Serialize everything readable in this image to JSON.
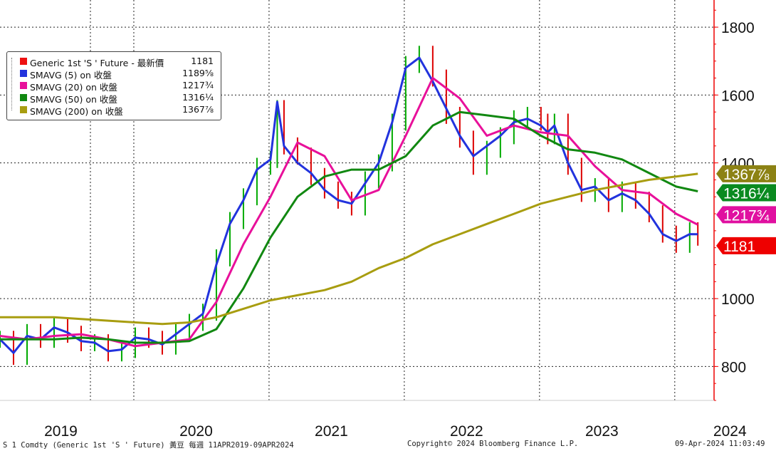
{
  "chart_data": {
    "type": "line",
    "title": "",
    "xlabel": "",
    "ylabel": "",
    "ylim": [
      700,
      1880
    ],
    "xlim": [
      2019.0,
      2024.28
    ],
    "grid": true,
    "legend_placement": "top-left",
    "y_ticks": [
      "800",
      "1000",
      "1400",
      "1600",
      "1800"
    ],
    "x_ticks": [
      "2019",
      "2020",
      "2021",
      "2022",
      "2023",
      "2024"
    ],
    "colors": {
      "price_up": "#00aa00",
      "price_down": "#dd0000",
      "sma5": "#2233dd",
      "sma20": "#e8109a",
      "sma50": "#118811",
      "sma200": "#a89d10",
      "axis": "#ee0000",
      "grid": "#222222"
    },
    "legend": [
      {
        "name": "Generic 1st 'S ' Future - 最新價",
        "value": "1181",
        "color": "#ee1111"
      },
      {
        "name": "SMAVG (5)  on 收盤",
        "value": "1189⅝",
        "color": "#2233dd"
      },
      {
        "name": "SMAVG (20) on 收盤",
        "value": "1217¾",
        "color": "#e8109a"
      },
      {
        "name": "SMAVG (50) on 收盤",
        "value": "1316¼",
        "color": "#118811"
      },
      {
        "name": "SMAVG (200) on 收盤",
        "value": "1367⅞",
        "color": "#a89d10"
      }
    ],
    "price_tags": [
      {
        "label": "1367⅞",
        "color": "#8c8214"
      },
      {
        "label": "1316¼",
        "color": "#0a8a20"
      },
      {
        "label": "1217¾",
        "color": "#e010a0"
      },
      {
        "label": "1181",
        "color": "#ee0000"
      }
    ],
    "series": [
      {
        "name": "Generic 1st 'S ' Future - 最新價",
        "x": [
          2019.0,
          2019.1,
          2019.2,
          2019.3,
          2019.4,
          2019.5,
          2019.6,
          2019.7,
          2019.8,
          2019.9,
          2020.0,
          2020.1,
          2020.2,
          2020.3,
          2020.4,
          2020.5,
          2020.6,
          2020.7,
          2020.8,
          2020.9,
          2021.0,
          2021.05,
          2021.1,
          2021.2,
          2021.3,
          2021.4,
          2021.5,
          2021.6,
          2021.7,
          2021.8,
          2021.9,
          2022.0,
          2022.1,
          2022.2,
          2022.3,
          2022.4,
          2022.5,
          2022.6,
          2022.7,
          2022.8,
          2022.9,
          2023.0,
          2023.05,
          2023.1,
          2023.2,
          2023.3,
          2023.4,
          2023.5,
          2023.6,
          2023.7,
          2023.8,
          2023.9,
          2024.0,
          2024.1,
          2024.16
        ],
        "values": [
          880,
          830,
          900,
          880,
          920,
          895,
          870,
          870,
          840,
          850,
          890,
          880,
          860,
          900,
          930,
          960,
          1120,
          1230,
          1300,
          1390,
          1410,
          1560,
          1450,
          1420,
          1360,
          1320,
          1290,
          1270,
          1350,
          1400,
          1520,
          1690,
          1720,
          1650,
          1540,
          1470,
          1390,
          1440,
          1480,
          1530,
          1540,
          1520,
          1480,
          1520,
          1390,
          1310,
          1330,
          1280,
          1320,
          1290,
          1250,
          1190,
          1160,
          1200,
          1181
        ]
      },
      {
        "name": "SMAVG (5) on 收盤",
        "x": [
          2019.0,
          2019.1,
          2019.2,
          2019.3,
          2019.4,
          2019.5,
          2019.6,
          2019.7,
          2019.8,
          2019.9,
          2020.0,
          2020.1,
          2020.2,
          2020.3,
          2020.4,
          2020.5,
          2020.6,
          2020.7,
          2020.8,
          2020.9,
          2021.0,
          2021.05,
          2021.1,
          2021.2,
          2021.3,
          2021.4,
          2021.5,
          2021.6,
          2021.7,
          2021.8,
          2021.9,
          2022.0,
          2022.1,
          2022.2,
          2022.3,
          2022.4,
          2022.5,
          2022.6,
          2022.7,
          2022.8,
          2022.9,
          2023.0,
          2023.05,
          2023.1,
          2023.2,
          2023.3,
          2023.4,
          2023.5,
          2023.6,
          2023.7,
          2023.8,
          2023.9,
          2024.0,
          2024.1,
          2024.16
        ],
        "values": [
          880,
          840,
          890,
          880,
          915,
          900,
          875,
          870,
          845,
          850,
          885,
          880,
          865,
          895,
          925,
          955,
          1100,
          1220,
          1290,
          1380,
          1410,
          1580,
          1450,
          1400,
          1370,
          1320,
          1290,
          1280,
          1340,
          1400,
          1520,
          1680,
          1710,
          1640,
          1560,
          1480,
          1420,
          1450,
          1480,
          1520,
          1530,
          1510,
          1490,
          1510,
          1400,
          1320,
          1330,
          1290,
          1310,
          1290,
          1250,
          1190,
          1170,
          1190,
          1189.6
        ]
      },
      {
        "name": "SMAVG (20) on 收盤",
        "x": [
          2019.0,
          2019.2,
          2019.4,
          2019.6,
          2019.8,
          2020.0,
          2020.2,
          2020.4,
          2020.6,
          2020.8,
          2021.0,
          2021.2,
          2021.4,
          2021.6,
          2021.8,
          2022.0,
          2022.2,
          2022.4,
          2022.6,
          2022.8,
          2023.0,
          2023.2,
          2023.4,
          2023.6,
          2023.8,
          2024.0,
          2024.16
        ],
        "values": [
          890,
          880,
          890,
          895,
          880,
          860,
          870,
          880,
          990,
          1160,
          1300,
          1460,
          1420,
          1290,
          1320,
          1480,
          1650,
          1590,
          1480,
          1510,
          1490,
          1480,
          1390,
          1320,
          1310,
          1250,
          1217.75
        ]
      },
      {
        "name": "SMAVG (50) on 收盤",
        "x": [
          2019.0,
          2019.2,
          2019.4,
          2019.6,
          2019.8,
          2020.0,
          2020.2,
          2020.4,
          2020.6,
          2020.8,
          2021.0,
          2021.2,
          2021.4,
          2021.6,
          2021.8,
          2022.0,
          2022.2,
          2022.4,
          2022.6,
          2022.8,
          2023.0,
          2023.2,
          2023.4,
          2023.6,
          2023.8,
          2024.0,
          2024.16
        ],
        "values": [
          880,
          880,
          880,
          885,
          880,
          870,
          870,
          875,
          910,
          1030,
          1180,
          1300,
          1360,
          1380,
          1380,
          1420,
          1510,
          1550,
          1540,
          1530,
          1480,
          1440,
          1430,
          1410,
          1370,
          1330,
          1316.25
        ]
      },
      {
        "name": "SMAVG (200) on 收盤",
        "x": [
          2019.0,
          2019.2,
          2019.4,
          2019.6,
          2019.8,
          2020.0,
          2020.2,
          2020.4,
          2020.6,
          2020.8,
          2021.0,
          2021.2,
          2021.4,
          2021.6,
          2021.8,
          2022.0,
          2022.2,
          2022.4,
          2022.6,
          2022.8,
          2023.0,
          2023.2,
          2023.4,
          2023.6,
          2023.8,
          2024.0,
          2024.16
        ],
        "values": [
          945,
          945,
          945,
          940,
          935,
          930,
          925,
          930,
          945,
          970,
          995,
          1010,
          1025,
          1050,
          1090,
          1120,
          1160,
          1190,
          1220,
          1250,
          1280,
          1300,
          1320,
          1335,
          1350,
          1360,
          1367.9
        ]
      }
    ]
  },
  "footer": {
    "left": "S 1 Comdty (Generic 1st 'S ' Future) 黃豆  每週 11APR2019-09APR2024",
    "center": "Copyright© 2024 Bloomberg Finance L.P.",
    "right": "09-Apr-2024 11:03:49"
  }
}
